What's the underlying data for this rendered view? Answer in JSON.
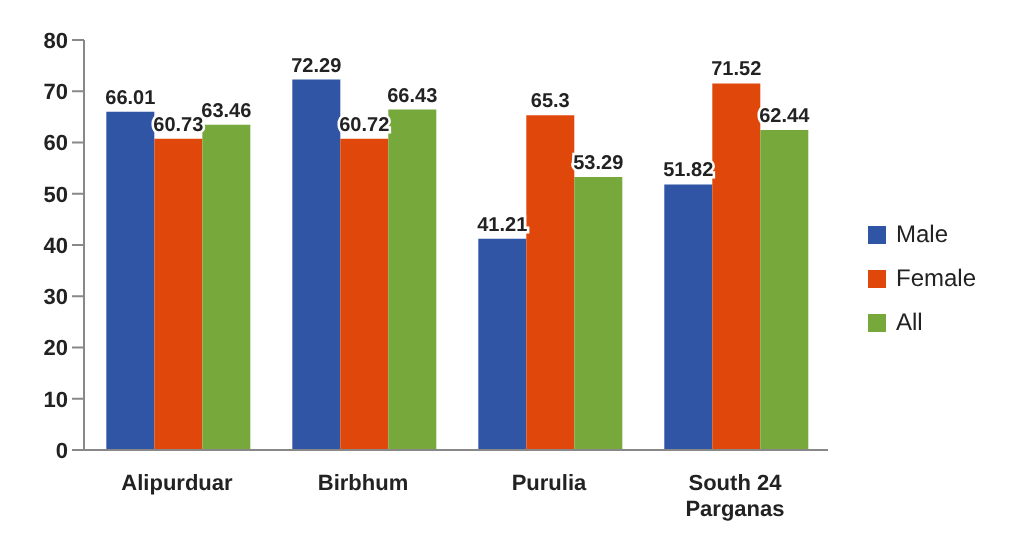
{
  "chart_data": {
    "type": "bar",
    "categories": [
      "Alipurduar",
      "Birbhum",
      "Purulia",
      "South 24 Parganas"
    ],
    "series": [
      {
        "name": "Male",
        "color": "#2f55a4",
        "values": [
          66.01,
          72.29,
          41.21,
          51.82
        ]
      },
      {
        "name": "Female",
        "color": "#e0480b",
        "values": [
          60.73,
          60.72,
          65.3,
          71.52
        ]
      },
      {
        "name": "All",
        "color": "#77a83c",
        "values": [
          63.46,
          66.43,
          53.29,
          62.44
        ]
      }
    ],
    "ylim": [
      0,
      80
    ],
    "yticks": [
      0,
      10,
      20,
      30,
      40,
      50,
      60,
      70,
      80
    ],
    "grid": false,
    "legend": "right",
    "data_labels": true
  }
}
